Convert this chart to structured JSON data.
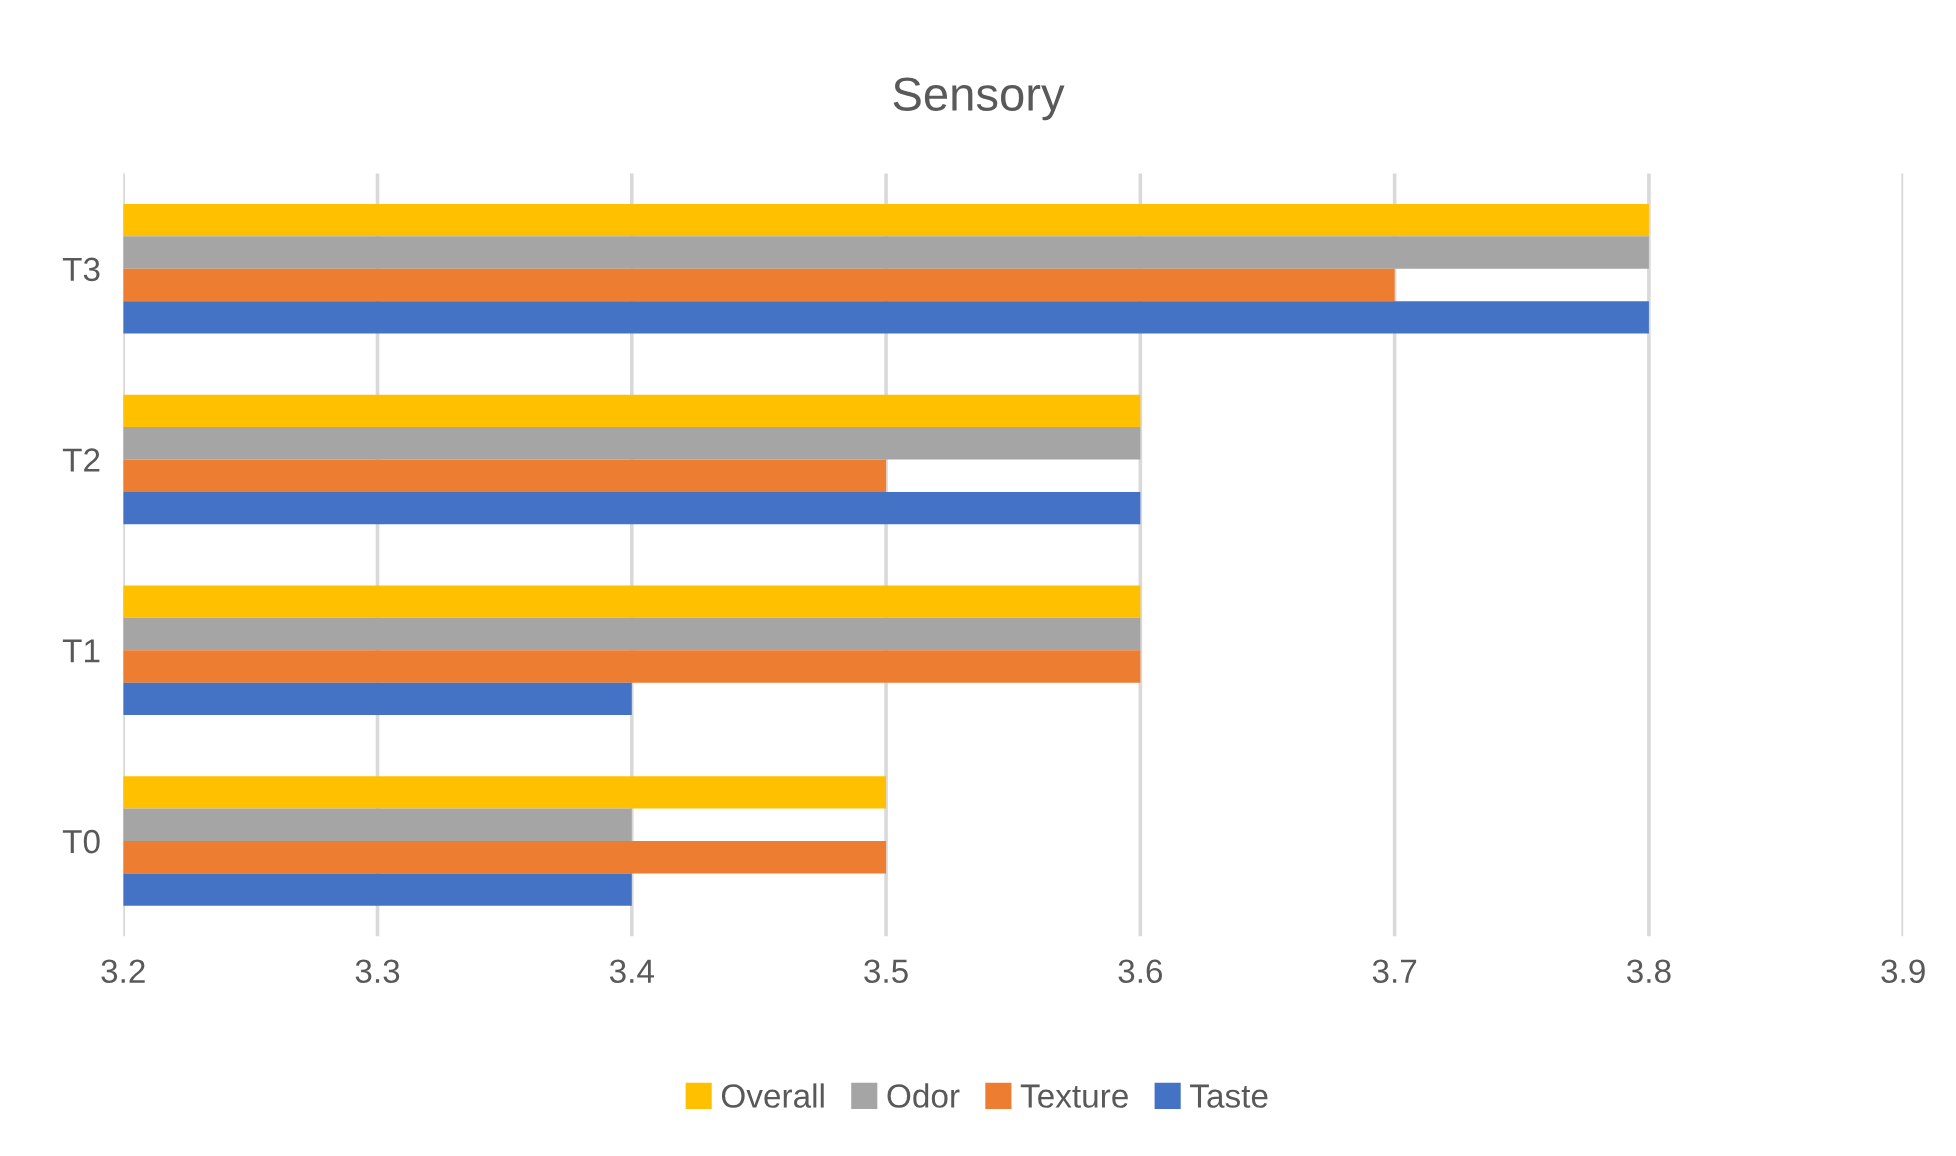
{
  "chart_data": {
    "type": "bar",
    "orientation": "horizontal",
    "title": "Sensory",
    "categories": [
      "T3",
      "T2",
      "T1",
      "T0"
    ],
    "series": [
      {
        "name": "Overall",
        "color": "#ffc000",
        "values": [
          3.8,
          3.6,
          3.6,
          3.5
        ]
      },
      {
        "name": "Odor",
        "color": "#a5a5a5",
        "values": [
          3.8,
          3.6,
          3.6,
          3.4
        ]
      },
      {
        "name": "Texture",
        "color": "#ed7d31",
        "values": [
          3.7,
          3.5,
          3.6,
          3.5
        ]
      },
      {
        "name": "Taste",
        "color": "#4472c4",
        "values": [
          3.8,
          3.6,
          3.4,
          3.4
        ]
      }
    ],
    "xlim": [
      3.2,
      3.9
    ],
    "xticks": [
      3.2,
      3.3,
      3.4,
      3.5,
      3.6,
      3.7,
      3.8,
      3.9
    ],
    "grid": "x",
    "legend": "bottom"
  }
}
